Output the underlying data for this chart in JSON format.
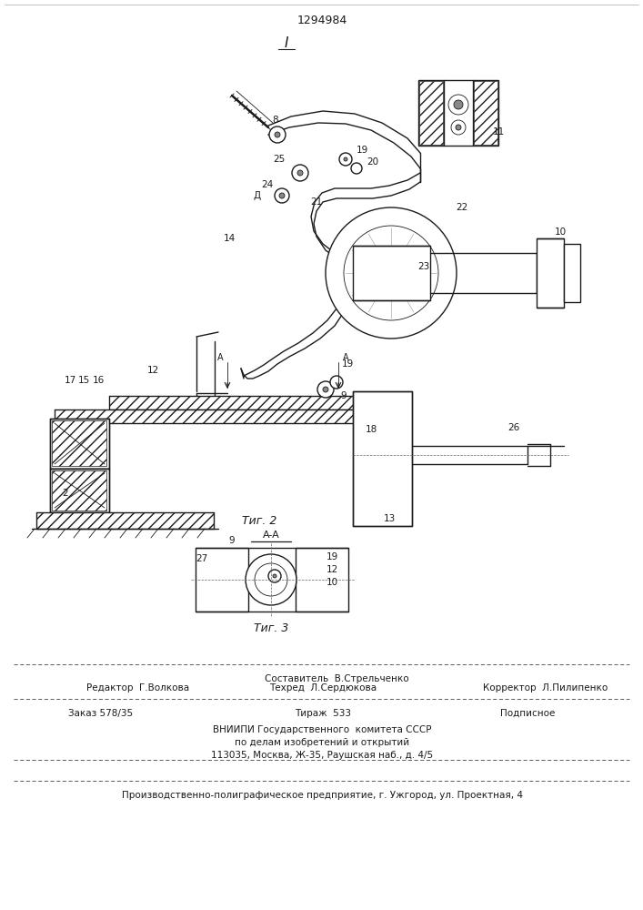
{
  "patent_number": "1294984",
  "fig_label_1": "I",
  "fig_label_2": "Τиг. 2",
  "fig_label_3": "Τиг. 3",
  "section_label": "A-A",
  "background_color": "#ffffff",
  "line_color": "#1a1a1a",
  "footer_line1_center_top": "Составитель  В.Стрельченко",
  "footer_line1_left": "Редактор  Г.Волкова",
  "footer_line1_center": "Техред  Л.Сердюкова",
  "footer_line1_right": "Корректор  Л.Пилипенко",
  "footer_line2_left": "Заказ 578/35",
  "footer_line2_center": "Тираж  533",
  "footer_line2_right": "Подписное",
  "footer_line3": "ВНИИПИ Государственного  комитета СССР",
  "footer_line4": "по делам изобретений и открытий",
  "footer_line5": "113035, Москва, Ж-35, Раушская наб., д. 4/5",
  "footer_bottom": "Производственно-полиграфическое предприятие, г. Ужгород, ул. Проектная, 4",
  "page_width": 7.07,
  "page_height": 10.0
}
